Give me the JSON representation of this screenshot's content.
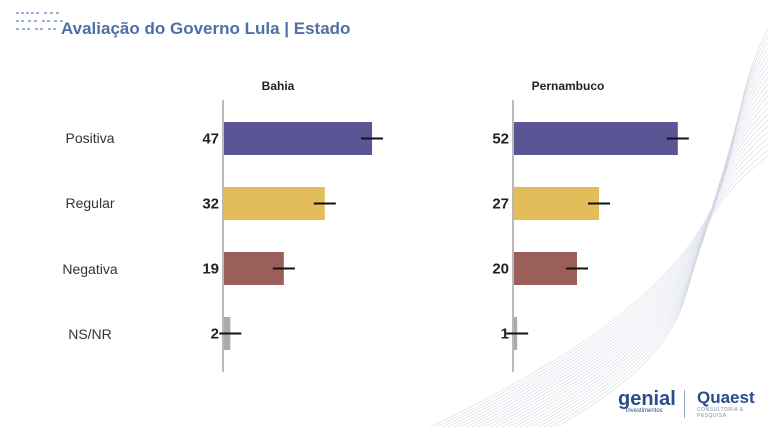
{
  "title": "Avaliação do Governo Lula | Estado",
  "chart_data": {
    "type": "bar",
    "orientation": "horizontal",
    "categories": [
      "Positiva",
      "Regular",
      "Negativa",
      "NS/NR"
    ],
    "colors": [
      "#5b5596",
      "#e2bd5a",
      "#9b5f5a",
      "#aaaaaa"
    ],
    "error_bars": true,
    "panels": [
      {
        "title": "Bahia",
        "values": [
          47,
          32,
          19,
          2
        ]
      },
      {
        "title": "Pernambuco",
        "values": [
          52,
          27,
          20,
          1
        ]
      }
    ]
  },
  "logos": {
    "genial": "genial",
    "genial_sub": "investimentos",
    "quaest": "Quaest",
    "quaest_sub": "CONSULTORIA & PESQUISA"
  }
}
